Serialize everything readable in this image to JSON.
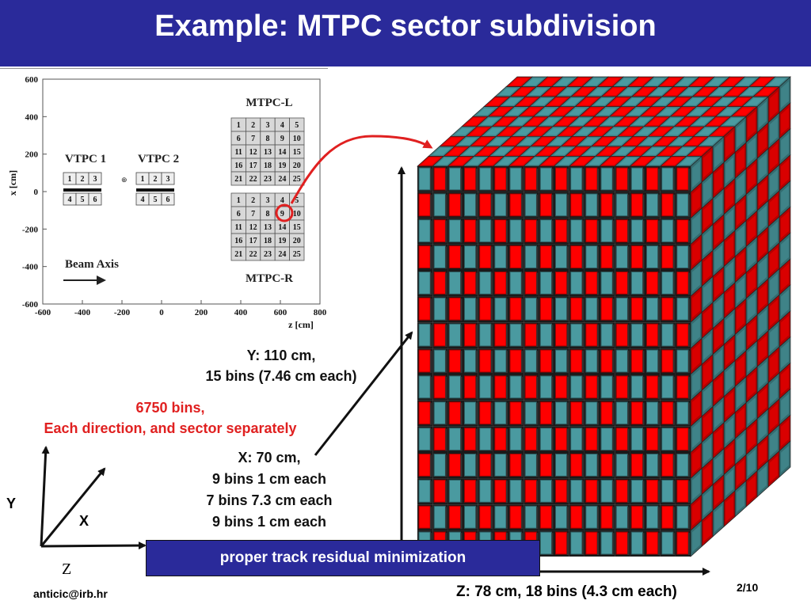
{
  "slide": {
    "title": "Example: MTPC sector subdivision",
    "colors": {
      "title_bar": "#2a2a9a",
      "red": "#ff0000",
      "teal": "#4a9aa0",
      "accent_red": "#e02020"
    },
    "plot": {
      "y_axis_label": "x [cm]",
      "x_axis_label": "z [cm]",
      "y_ticks": [
        "600",
        "400",
        "200",
        "0",
        "-200",
        "-400",
        "-600"
      ],
      "x_ticks": [
        "-600",
        "-400",
        "-200",
        "0",
        "200",
        "400",
        "600",
        "800"
      ],
      "vtpc1_label": "VTPC 1",
      "vtpc2_label": "VTPC 2",
      "vtpc_top_cells": [
        "1",
        "2",
        "3"
      ],
      "vtpc_bottom_cells": [
        "4",
        "5",
        "6"
      ],
      "mtpc_l_label": "MTPC-L",
      "mtpc_r_label": "MTPC-R",
      "mtpc_cells": [
        "1",
        "2",
        "3",
        "4",
        "5",
        "6",
        "7",
        "8",
        "9",
        "10",
        "11",
        "12",
        "13",
        "14",
        "15",
        "16",
        "17",
        "18",
        "19",
        "20",
        "21",
        "22",
        "23",
        "24",
        "25"
      ],
      "beam_axis_label": "Beam Axis"
    },
    "y_info": [
      "Y: 110 cm,",
      "15 bins (7.46 cm each)"
    ],
    "bins_info": [
      "6750 bins,",
      "Each direction, and sector separately"
    ],
    "x_info": [
      "X: 70 cm,",
      "9 bins 1 cm each",
      "7 bins 7.3 cm each",
      "9 bins 1 cm each"
    ],
    "axes": {
      "y": "Y",
      "x": "X",
      "z": "Z"
    },
    "banner": "proper track residual minimization",
    "footer": {
      "email": "anticic@irb.hr",
      "z_info": "Z:  78 cm, 18 bins (4.3 cm each)",
      "page": "2/10"
    }
  }
}
